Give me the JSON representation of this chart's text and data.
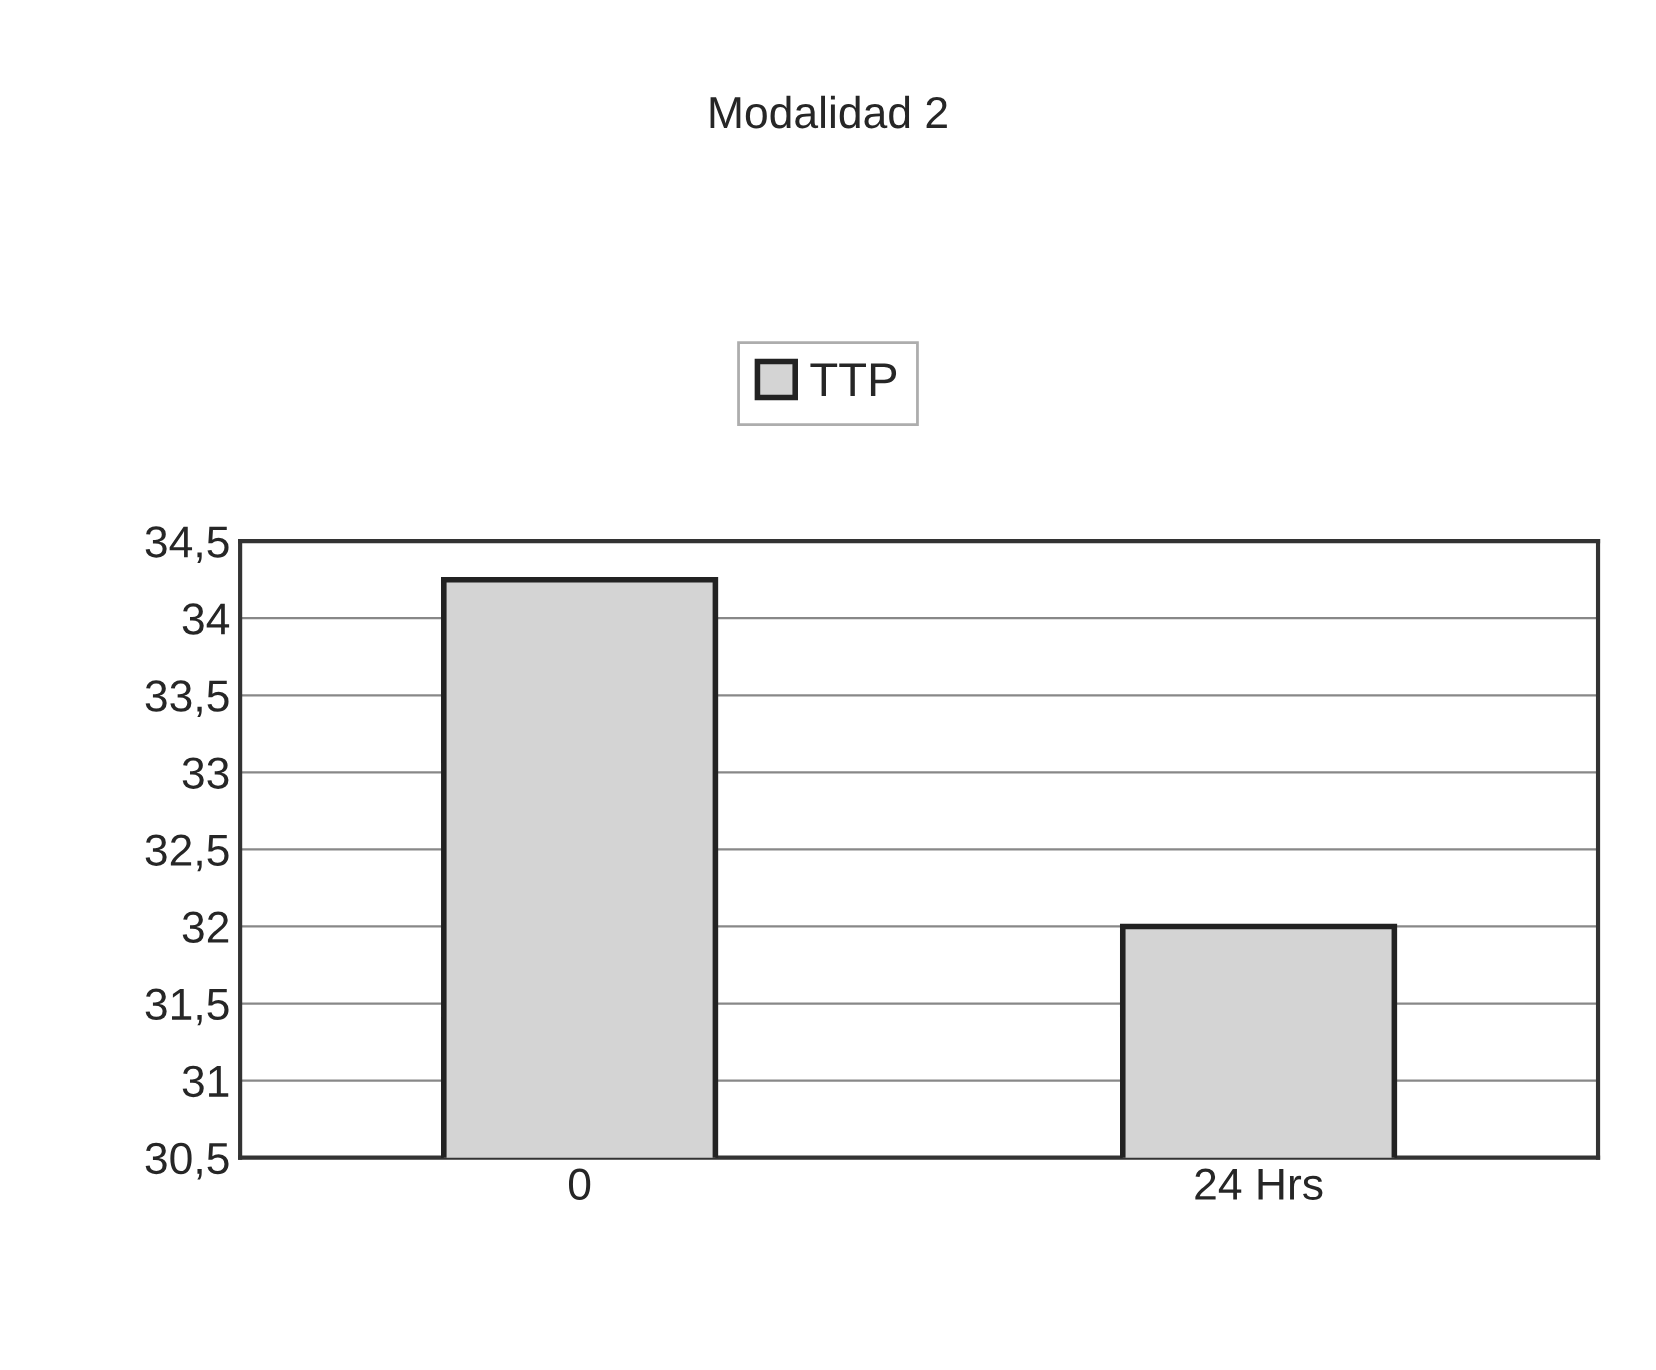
{
  "chart_data": {
    "type": "bar",
    "title": "Modalidad 2",
    "categories": [
      "0",
      "24 Hrs"
    ],
    "series": [
      {
        "name": "TTP",
        "color": "#d4d4d4",
        "values": [
          34.25,
          32.0
        ]
      }
    ],
    "ylim": [
      30.5,
      34.5
    ],
    "yticks": [
      {
        "value": 30.5,
        "label": "30,5"
      },
      31,
      {
        "value": 31.5,
        "label": "31,5"
      },
      32,
      {
        "value": 32.5,
        "label": "32,5"
      },
      33,
      {
        "value": 33.5,
        "label": "33,5"
      },
      34,
      {
        "value": 34.5,
        "label": "34,5"
      }
    ],
    "grid": "y",
    "legend": "top"
  }
}
